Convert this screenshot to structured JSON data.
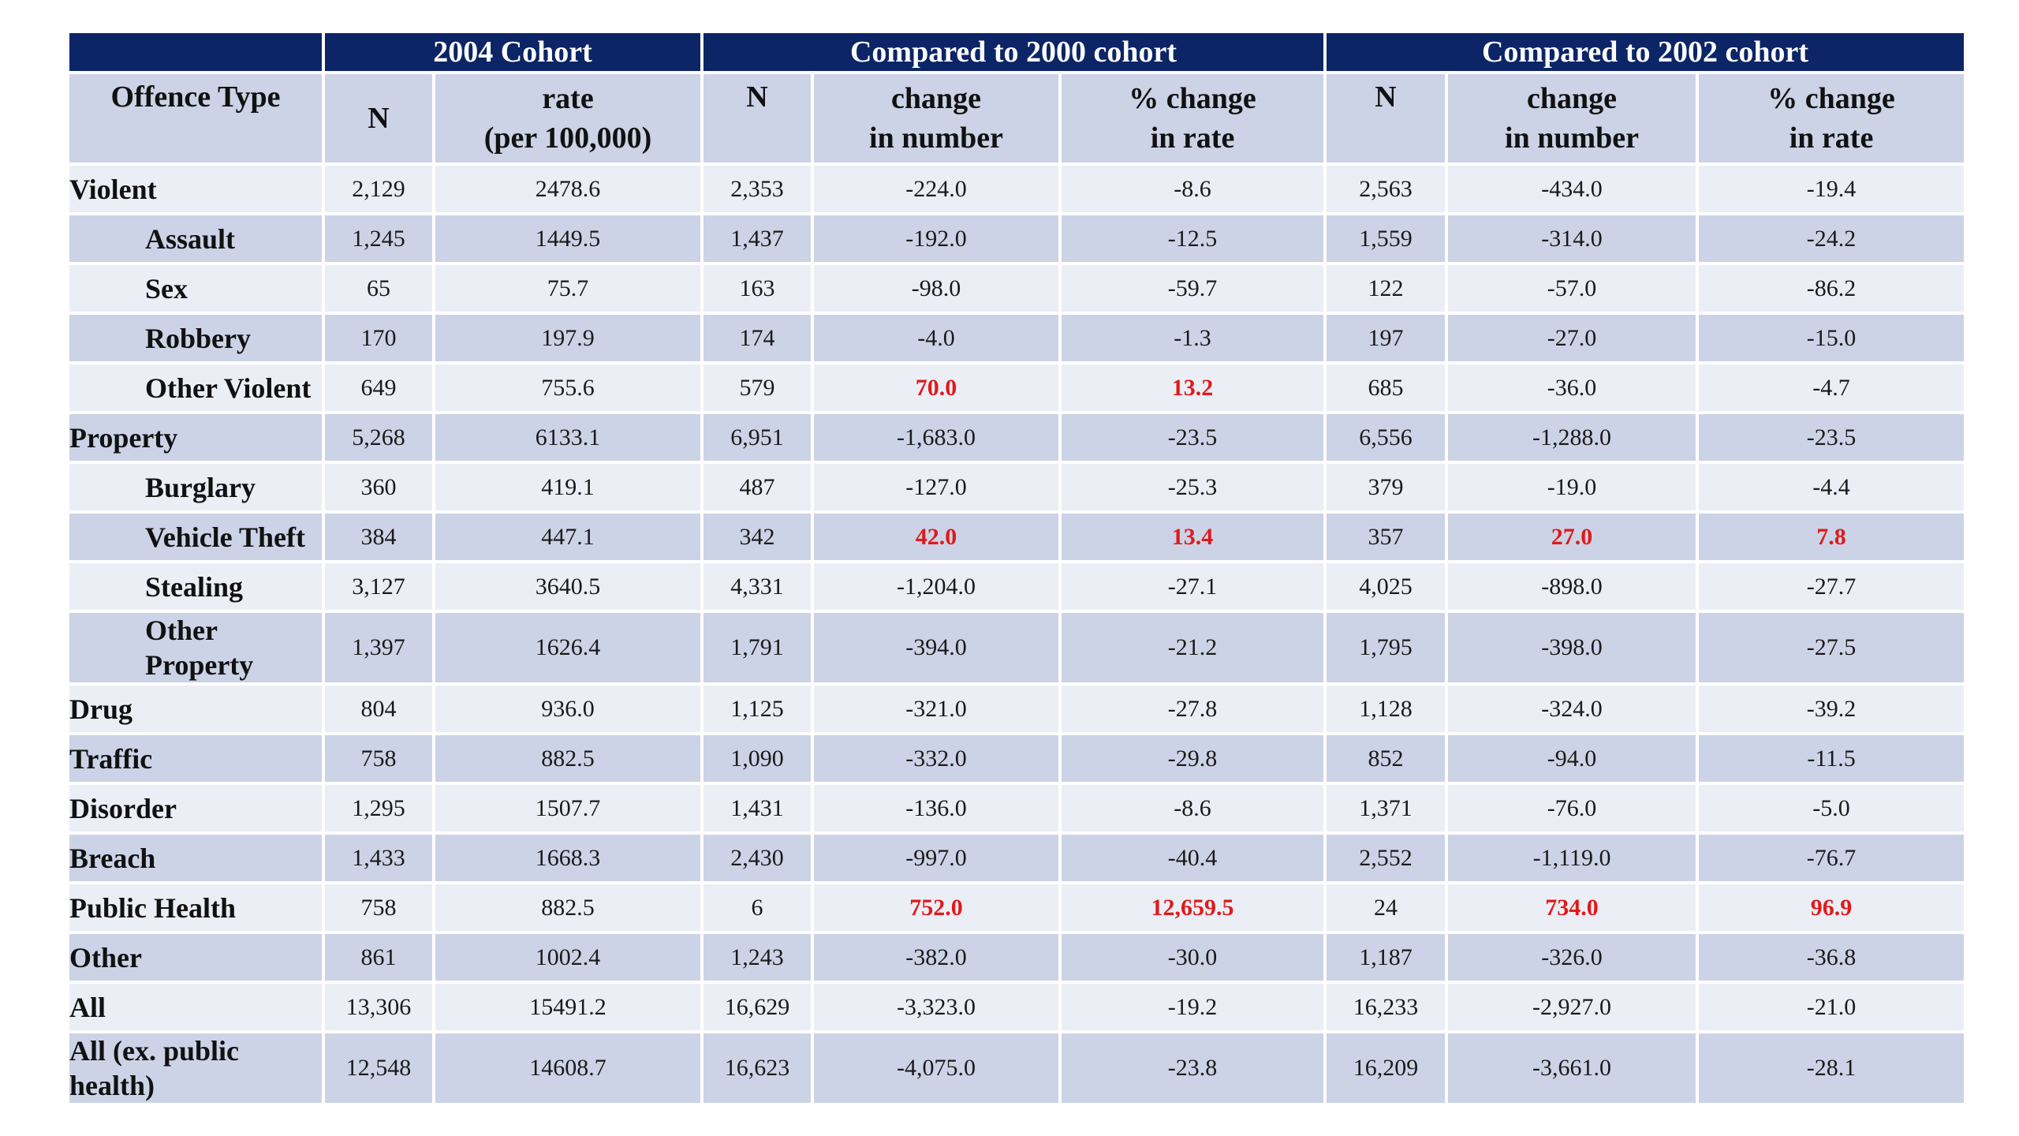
{
  "table": {
    "group_headers": [
      "",
      "2004 Cohort",
      "Compared to 2000 cohort",
      "Compared to 2002 cohort"
    ],
    "column_headers": {
      "offence_type": "Offence Type",
      "n_2004": "N",
      "rate_line1": "rate",
      "rate_line2": "(per 100,000)",
      "n_2000": "N",
      "change_line1": "change",
      "change_line2": "in number",
      "pct_line1": "% change",
      "pct_line2": "in rate",
      "n_2002": "N",
      "change2_line1": "change",
      "change2_line2": "in number",
      "pct2_line1": "% change",
      "pct2_line2": "in rate"
    },
    "highlight_color": "#e01a1a",
    "header_color": "#0b2566",
    "rows": [
      {
        "label": [
          "Violent"
        ],
        "indent": false,
        "cells": [
          "2,129",
          "2478.6",
          "2,353",
          "-224.0",
          "-8.6",
          "2,563",
          "-434.0",
          "-19.4"
        ],
        "highlight": []
      },
      {
        "label": [
          "Assault"
        ],
        "indent": true,
        "cells": [
          "1,245",
          "1449.5",
          "1,437",
          "-192.0",
          "-12.5",
          "1,559",
          "-314.0",
          "-24.2"
        ],
        "highlight": []
      },
      {
        "label": [
          "Sex"
        ],
        "indent": true,
        "cells": [
          "65",
          "75.7",
          "163",
          "-98.0",
          "-59.7",
          "122",
          "-57.0",
          "-86.2"
        ],
        "highlight": []
      },
      {
        "label": [
          "Robbery"
        ],
        "indent": true,
        "cells": [
          "170",
          "197.9",
          "174",
          "-4.0",
          "-1.3",
          "197",
          "-27.0",
          "-15.0"
        ],
        "highlight": []
      },
      {
        "label": [
          "Other Violent"
        ],
        "indent": true,
        "cells": [
          "649",
          "755.6",
          "579",
          "70.0",
          "13.2",
          "685",
          "-36.0",
          "-4.7"
        ],
        "highlight": [
          3,
          4
        ]
      },
      {
        "label": [
          "Property"
        ],
        "indent": false,
        "cells": [
          "5,268",
          "6133.1",
          "6,951",
          "-1,683.0",
          "-23.5",
          "6,556",
          "-1,288.0",
          "-23.5"
        ],
        "highlight": []
      },
      {
        "label": [
          "Burglary"
        ],
        "indent": true,
        "cells": [
          "360",
          "419.1",
          "487",
          "-127.0",
          "-25.3",
          "379",
          "-19.0",
          "-4.4"
        ],
        "highlight": []
      },
      {
        "label": [
          "Vehicle Theft"
        ],
        "indent": true,
        "cells": [
          "384",
          "447.1",
          "342",
          "42.0",
          "13.4",
          "357",
          "27.0",
          "7.8"
        ],
        "highlight": [
          3,
          4,
          6,
          7
        ]
      },
      {
        "label": [
          "Stealing"
        ],
        "indent": true,
        "cells": [
          "3,127",
          "3640.5",
          "4,331",
          "-1,204.0",
          "-27.1",
          "4,025",
          "-898.0",
          "-27.7"
        ],
        "highlight": []
      },
      {
        "label": [
          "Other",
          "Property"
        ],
        "indent": true,
        "cells": [
          "1,397",
          "1626.4",
          "1,791",
          "-394.0",
          "-21.2",
          "1,795",
          "-398.0",
          "-27.5"
        ],
        "highlight": []
      },
      {
        "label": [
          "Drug"
        ],
        "indent": false,
        "cells": [
          "804",
          "936.0",
          "1,125",
          "-321.0",
          "-27.8",
          "1,128",
          "-324.0",
          "-39.2"
        ],
        "highlight": []
      },
      {
        "label": [
          "Traffic"
        ],
        "indent": false,
        "cells": [
          "758",
          "882.5",
          "1,090",
          "-332.0",
          "-29.8",
          "852",
          "-94.0",
          "-11.5"
        ],
        "highlight": []
      },
      {
        "label": [
          "Disorder"
        ],
        "indent": false,
        "cells": [
          "1,295",
          "1507.7",
          "1,431",
          "-136.0",
          "-8.6",
          "1,371",
          "-76.0",
          "-5.0"
        ],
        "highlight": []
      },
      {
        "label": [
          "Breach"
        ],
        "indent": false,
        "cells": [
          "1,433",
          "1668.3",
          "2,430",
          "-997.0",
          "-40.4",
          "2,552",
          "-1,119.0",
          "-76.7"
        ],
        "highlight": []
      },
      {
        "label": [
          "Public Health"
        ],
        "indent": false,
        "cells": [
          "758",
          "882.5",
          "6",
          "752.0",
          "12,659.5",
          "24",
          "734.0",
          "96.9"
        ],
        "highlight": [
          3,
          4,
          6,
          7
        ]
      },
      {
        "label": [
          "Other"
        ],
        "indent": false,
        "cells": [
          "861",
          "1002.4",
          "1,243",
          "-382.0",
          "-30.0",
          "1,187",
          "-326.0",
          "-36.8"
        ],
        "highlight": []
      },
      {
        "label": [
          "All"
        ],
        "indent": false,
        "cells": [
          "13,306",
          "15491.2",
          "16,629",
          "-3,323.0",
          "-19.2",
          "16,233",
          "-2,927.0",
          "-21.0"
        ],
        "highlight": []
      },
      {
        "label": [
          "All (ex. public",
          "health)"
        ],
        "indent": false,
        "cells": [
          "12,548",
          "14608.7",
          "16,623",
          "-4,075.0",
          "-23.8",
          "16,209",
          "-3,661.0",
          "-28.1"
        ],
        "highlight": []
      }
    ]
  }
}
